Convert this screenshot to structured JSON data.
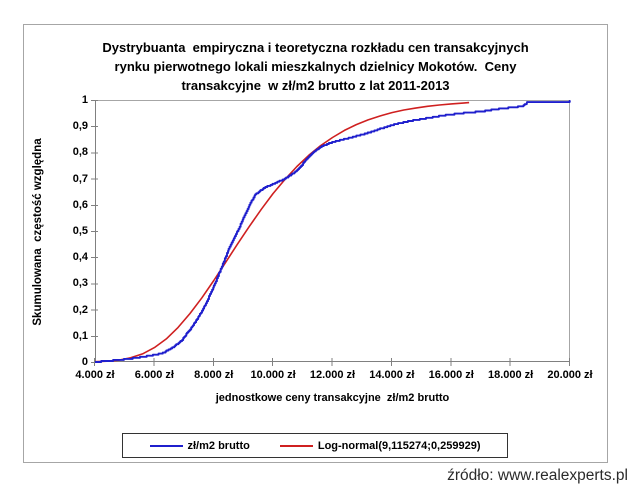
{
  "chart": {
    "title_lines": [
      "Dystrybuanta  empiryczna i teoretyczna rozkładu cen transakcyjnych",
      "rynku pierwotnego lokali mieszkalnych dzielnicy Mokotów.  Ceny",
      "transakcyjne  w zł/m2 brutto z lat 2011-2013"
    ],
    "y_axis_title": "Skumulowana  częstość względna",
    "x_axis_title": "jednostkowe ceny transakcyjne  zł/m2 brutto",
    "source": "źródło: www.realexperts.pl"
  },
  "legend": {
    "series1_label": "zł/m2 brutto",
    "series2_label": "Log-normal(9,115274;0,259929)"
  },
  "colors": {
    "empirical": "#1f1fcd",
    "lognormal": "#cf2020",
    "axis": "#808080",
    "frame_border": "#a6a6a6",
    "legend_border": "#333333"
  },
  "chart_data": {
    "type": "line",
    "title": "Dystrybuanta empiryczna i teoretyczna rozkładu cen transakcyjnych rynku pierwotnego lokali mieszkalnych dzielnicy Mokotów. Ceny transakcyjne w zł/m2 brutto z lat 2011-2013",
    "xlabel": "jednostkowe ceny transakcyjne zł/m2 brutto",
    "ylabel": "Skumulowana częstość względna",
    "xlim": [
      4000,
      20000
    ],
    "ylim": [
      0,
      1
    ],
    "grid": false,
    "legend_position": "bottom",
    "x_tick_values": [
      4000,
      6000,
      8000,
      10000,
      12000,
      14000,
      16000,
      18000,
      20000
    ],
    "x_tick_labels": [
      "4.000 zł",
      "6.000 zł",
      "8.000 zł",
      "10.000 zł",
      "12.000 zł",
      "14.000 zł",
      "16.000 zł",
      "18.000 zł",
      "20.000 zł"
    ],
    "y_tick_values": [
      0,
      0.1,
      0.2,
      0.3,
      0.4,
      0.5,
      0.6,
      0.7,
      0.8,
      0.9,
      1
    ],
    "y_tick_labels": [
      "0",
      "0,1",
      "0,2",
      "0,3",
      "0,4",
      "0,5",
      "0,6",
      "0,7",
      "0,8",
      "0,9",
      "1"
    ],
    "series": [
      {
        "name": "zł/m2 brutto",
        "style": "empirical_step",
        "color": "#1f1fcd",
        "points": [
          [
            4000,
            0.0
          ],
          [
            4400,
            0.004
          ],
          [
            4800,
            0.008
          ],
          [
            5200,
            0.013
          ],
          [
            5600,
            0.02
          ],
          [
            6000,
            0.027
          ],
          [
            6300,
            0.035
          ],
          [
            6600,
            0.055
          ],
          [
            6900,
            0.08
          ],
          [
            7100,
            0.11
          ],
          [
            7300,
            0.14
          ],
          [
            7500,
            0.175
          ],
          [
            7700,
            0.215
          ],
          [
            8000,
            0.29
          ],
          [
            8200,
            0.345
          ],
          [
            8500,
            0.43
          ],
          [
            8800,
            0.5
          ],
          [
            9000,
            0.55
          ],
          [
            9200,
            0.6
          ],
          [
            9400,
            0.64
          ],
          [
            9700,
            0.665
          ],
          [
            10000,
            0.68
          ],
          [
            10400,
            0.7
          ],
          [
            10800,
            0.73
          ],
          [
            11100,
            0.77
          ],
          [
            11400,
            0.805
          ],
          [
            11600,
            0.822
          ],
          [
            12000,
            0.84
          ],
          [
            12400,
            0.851
          ],
          [
            12800,
            0.862
          ],
          [
            13200,
            0.875
          ],
          [
            13600,
            0.89
          ],
          [
            14000,
            0.905
          ],
          [
            14400,
            0.915
          ],
          [
            14800,
            0.924
          ],
          [
            15200,
            0.931
          ],
          [
            15600,
            0.939
          ],
          [
            16000,
            0.945
          ],
          [
            16500,
            0.951
          ],
          [
            17000,
            0.956
          ],
          [
            17500,
            0.965
          ],
          [
            18000,
            0.971
          ],
          [
            18400,
            0.976
          ],
          [
            18550,
            0.99
          ],
          [
            19600,
            0.991
          ],
          [
            19950,
            0.993
          ],
          [
            20000,
            0.998
          ]
        ]
      },
      {
        "name": "Log-normal(9,115274;0,259929)",
        "style": "smooth",
        "color": "#cf2020",
        "mu": "9,115274",
        "sigma": "0,259929",
        "points": [
          [
            4000,
            0.001
          ],
          [
            4400,
            0.003
          ],
          [
            4800,
            0.007
          ],
          [
            5200,
            0.016
          ],
          [
            5600,
            0.031
          ],
          [
            6000,
            0.055
          ],
          [
            6400,
            0.088
          ],
          [
            6800,
            0.132
          ],
          [
            7200,
            0.185
          ],
          [
            7600,
            0.245
          ],
          [
            8000,
            0.311
          ],
          [
            8400,
            0.38
          ],
          [
            8800,
            0.45
          ],
          [
            9200,
            0.518
          ],
          [
            9600,
            0.583
          ],
          [
            10000,
            0.643
          ],
          [
            10400,
            0.697
          ],
          [
            10800,
            0.746
          ],
          [
            11200,
            0.789
          ],
          [
            11600,
            0.826
          ],
          [
            12000,
            0.857
          ],
          [
            12400,
            0.884
          ],
          [
            12800,
            0.906
          ],
          [
            13200,
            0.924
          ],
          [
            13600,
            0.939
          ],
          [
            14000,
            0.952
          ],
          [
            14400,
            0.962
          ],
          [
            14800,
            0.969
          ],
          [
            15200,
            0.976
          ],
          [
            15600,
            0.981
          ],
          [
            16000,
            0.985
          ],
          [
            16400,
            0.988
          ],
          [
            16600,
            0.99
          ]
        ]
      }
    ]
  }
}
